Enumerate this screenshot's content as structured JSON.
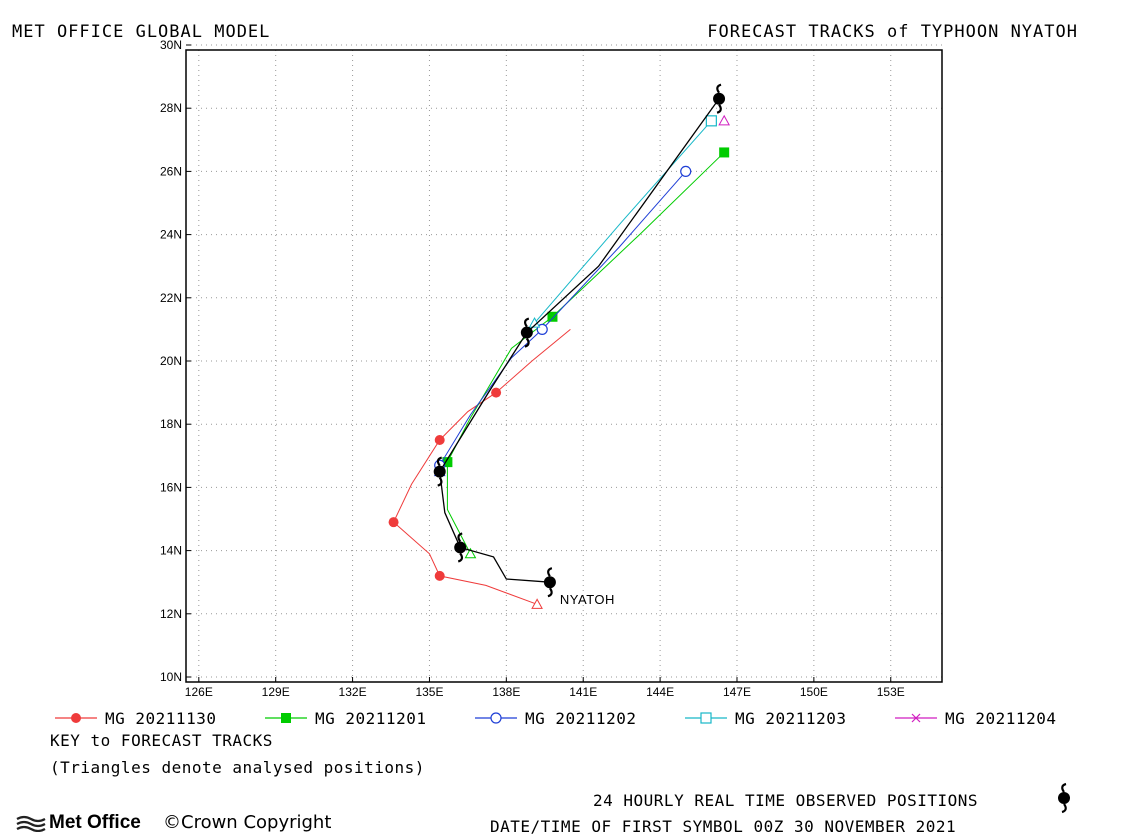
{
  "header": {
    "left_title": "MET OFFICE GLOBAL MODEL",
    "right_title": "FORECAST TRACKS of TYPHOON NYATOH"
  },
  "axes": {
    "lon_range": [
      125.5,
      155
    ],
    "lat_range": [
      10,
      30
    ],
    "lon_ticks": [
      126,
      129,
      132,
      135,
      138,
      141,
      144,
      147,
      150,
      153
    ],
    "lat_ticks": [
      10,
      12,
      14,
      16,
      18,
      20,
      22,
      24,
      26,
      28,
      30
    ],
    "lon_labels": [
      "126E",
      "129E",
      "132E",
      "135E",
      "138E",
      "141E",
      "144E",
      "147E",
      "150E",
      "153E"
    ],
    "lat_labels": [
      "10N",
      "12N",
      "14N",
      "16N",
      "18N",
      "20N",
      "22N",
      "24N",
      "26N",
      "28N",
      "30N"
    ],
    "grid": "dotted"
  },
  "storm_label": "NYATOH",
  "observed_track": {
    "color": "#000000",
    "points": [
      [
        139.7,
        13.0
      ],
      [
        138.0,
        13.1
      ],
      [
        137.5,
        13.8
      ],
      [
        136.2,
        14.1
      ],
      [
        135.6,
        15.2
      ],
      [
        135.4,
        16.5
      ],
      [
        137.3,
        19.0
      ],
      [
        138.8,
        20.9
      ],
      [
        141.6,
        23.0
      ],
      [
        146.3,
        28.3
      ]
    ],
    "symbol_points": [
      [
        139.7,
        13.0
      ],
      [
        136.2,
        14.1
      ],
      [
        135.4,
        16.5
      ],
      [
        138.8,
        20.9
      ],
      [
        146.3,
        28.3
      ]
    ]
  },
  "forecast_tracks": [
    {
      "name": "MG 20211130",
      "color": "#ef3b3b",
      "marker": "filled-circle",
      "analysed": [
        139.2,
        12.3
      ],
      "points": [
        [
          139.2,
          12.3
        ],
        [
          137.2,
          12.9
        ],
        [
          135.4,
          13.2
        ],
        [
          135.0,
          13.9
        ],
        [
          133.6,
          14.9
        ],
        [
          134.3,
          16.1
        ],
        [
          135.4,
          17.5
        ],
        [
          136.5,
          18.4
        ],
        [
          137.6,
          19.0
        ],
        [
          139.0,
          20.0
        ],
        [
          140.5,
          21.0
        ]
      ],
      "marker_points": [
        [
          135.4,
          13.2
        ],
        [
          133.6,
          14.9
        ],
        [
          135.4,
          17.5
        ],
        [
          137.6,
          19.0
        ]
      ]
    },
    {
      "name": "MG 20211201",
      "color": "#00cc00",
      "marker": "filled-square",
      "analysed": [
        136.6,
        13.9
      ],
      "points": [
        [
          136.6,
          13.9
        ],
        [
          135.7,
          15.3
        ],
        [
          135.7,
          16.8
        ],
        [
          136.6,
          18.2
        ],
        [
          138.2,
          20.4
        ],
        [
          139.8,
          21.4
        ],
        [
          143.2,
          24.0
        ],
        [
          146.5,
          26.6
        ]
      ],
      "marker_points": [
        [
          135.7,
          16.8
        ],
        [
          139.8,
          21.4
        ],
        [
          146.5,
          26.6
        ]
      ]
    },
    {
      "name": "MG 20211202",
      "color": "#1f3fd6",
      "marker": "open-circle",
      "analysed": [
        135.4,
        16.5
      ],
      "points": [
        [
          135.4,
          16.5
        ],
        [
          135.4,
          16.7
        ],
        [
          136.6,
          18.3
        ],
        [
          138.2,
          20.1
        ],
        [
          139.4,
          21.0
        ],
        [
          142.4,
          23.6
        ],
        [
          145.0,
          26.0
        ]
      ],
      "marker_points": [
        [
          135.4,
          16.7
        ],
        [
          139.4,
          21.0
        ],
        [
          145.0,
          26.0
        ]
      ]
    },
    {
      "name": "MG 20211203",
      "color": "#17b8c8",
      "marker": "open-square",
      "analysed": [
        139.1,
        21.2
      ],
      "points": [
        [
          139.1,
          21.2
        ],
        [
          142.5,
          24.4
        ],
        [
          146.0,
          27.6
        ]
      ],
      "marker_points": [
        [
          146.0,
          27.6
        ]
      ]
    },
    {
      "name": "MG 20211204",
      "color": "#d01ec0",
      "marker": "cross",
      "analysed": [
        146.5,
        27.6
      ],
      "points": [
        [
          146.5,
          27.6
        ]
      ],
      "marker_points": []
    }
  ],
  "legend": {
    "items": [
      "MG 20211130",
      "MG 20211201",
      "MG 20211202",
      "MG 20211203",
      "MG 20211204"
    ]
  },
  "footer": {
    "key_title": "KEY to FORECAST TRACKS",
    "key_note": "(Triangles denote analysed positions)",
    "observed_note": "24 HOURLY REAL TIME OBSERVED POSITIONS",
    "datetime_note": "DATE/TIME OF FIRST SYMBOL 00Z 30 NOVEMBER 2021",
    "brand": "Met Office",
    "copyright": "Crown Copyright"
  }
}
